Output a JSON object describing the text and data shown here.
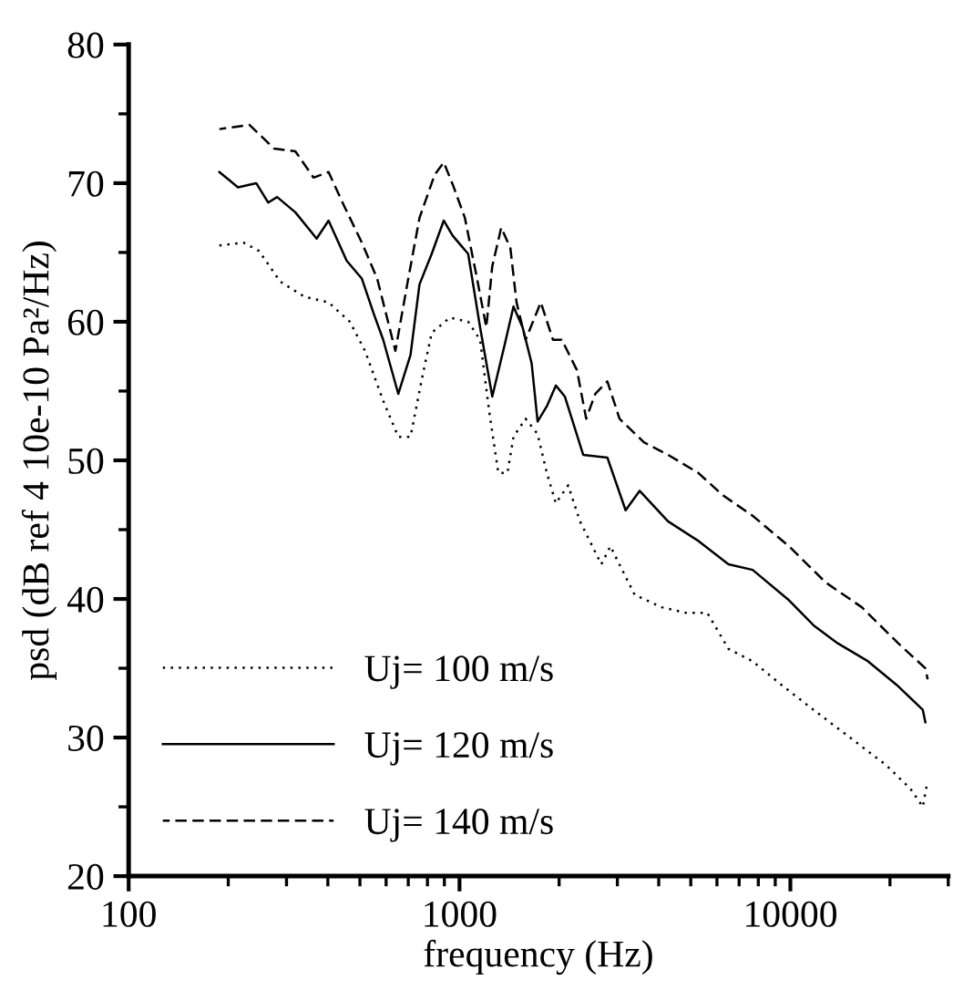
{
  "chart_data": {
    "type": "line",
    "xlabel": "frequency (Hz)",
    "ylabel": "psd (dB ref 4 10e-10 Pa²/Hz)",
    "log": "x",
    "xlim": [
      100,
      30000
    ],
    "xticks": [
      100,
      1000,
      10000
    ],
    "ylim": [
      20,
      80
    ],
    "yticks": [
      20,
      30,
      40,
      50,
      60,
      70,
      80
    ],
    "grid": false,
    "legend": "bottom left",
    "marker": "none",
    "series": [
      {
        "name": "Uj= 100 m/s",
        "color": "#000000",
        "line_style": "dotted",
        "x": [
          188,
          223,
          248,
          287,
          340,
          402,
          466,
          518,
          588,
          653,
          711,
          773,
          824,
          935,
          1062,
          1154,
          1230,
          1310,
          1396,
          1456,
          1584,
          1722,
          1836,
          1955,
          2130,
          2313,
          2683,
          2858,
          3383,
          4084,
          4839,
          5607,
          6500,
          7690,
          9510,
          11750,
          15140,
          19500,
          23070,
          25130,
          25900
        ],
        "values": [
          65.5,
          65.7,
          65.1,
          62.9,
          61.8,
          61.4,
          60.0,
          57.9,
          54.3,
          51.7,
          51.7,
          56.1,
          59.2,
          60.3,
          60.0,
          58.7,
          53.5,
          49.1,
          49.1,
          51.7,
          53.0,
          51.9,
          49.1,
          46.9,
          48.2,
          45.6,
          42.5,
          43.8,
          40.3,
          39.4,
          39.0,
          39.0,
          36.4,
          35.5,
          33.7,
          32.0,
          30.0,
          28.0,
          26.3,
          25.0,
          26.7
        ]
      },
      {
        "name": "Uj= 120 m/s",
        "color": "#000000",
        "line_style": "solid",
        "x": [
          188,
          214,
          243,
          264,
          281,
          319,
          370,
          402,
          456,
          507,
          552,
          588,
          653,
          711,
          757,
          824,
          896,
          954,
          1062,
          1154,
          1256,
          1368,
          1456,
          1551,
          1652,
          1722,
          1836,
          1955,
          2082,
          2365,
          2798,
          3177,
          3502,
          4267,
          5264,
          6500,
          7690,
          9910,
          11750,
          13900,
          17170,
          21180,
          25130,
          25590
        ],
        "values": [
          70.8,
          69.7,
          70.0,
          68.6,
          69.0,
          67.9,
          66.0,
          67.3,
          64.4,
          63.1,
          60.5,
          58.7,
          54.8,
          57.6,
          62.7,
          64.9,
          67.3,
          66.2,
          64.9,
          59.6,
          54.6,
          58.3,
          61.1,
          59.6,
          57.0,
          52.8,
          53.9,
          55.4,
          54.6,
          50.4,
          50.2,
          46.4,
          47.8,
          45.6,
          44.2,
          42.5,
          42.1,
          39.9,
          38.1,
          36.8,
          35.5,
          33.7,
          32.0,
          31.1
        ]
      },
      {
        "name": "Uj= 140 m/s",
        "color": "#000000",
        "line_style": "dashed",
        "x": [
          188,
          232,
          275,
          319,
          362,
          402,
          447,
          507,
          564,
          640,
          695,
          757,
          841,
          896,
          954,
          1038,
          1130,
          1205,
          1256,
          1337,
          1425,
          1487,
          1584,
          1761,
          1916,
          2038,
          2265,
          2415,
          2572,
          2798,
          3046,
          3608,
          4267,
          5264,
          6237,
          7690,
          9910,
          12770,
          16440,
          21180,
          25590,
          26000
        ],
        "values": [
          73.9,
          74.2,
          72.5,
          72.3,
          70.4,
          70.8,
          68.4,
          65.7,
          63.1,
          57.9,
          62.7,
          67.5,
          70.6,
          71.5,
          69.9,
          67.5,
          63.1,
          59.6,
          64.0,
          66.8,
          65.3,
          61.4,
          58.7,
          61.4,
          58.7,
          58.7,
          56.5,
          53.0,
          54.8,
          55.7,
          53.0,
          51.3,
          50.4,
          49.1,
          47.5,
          46.0,
          43.8,
          41.2,
          39.4,
          36.8,
          35.0,
          34.2
        ]
      }
    ]
  }
}
